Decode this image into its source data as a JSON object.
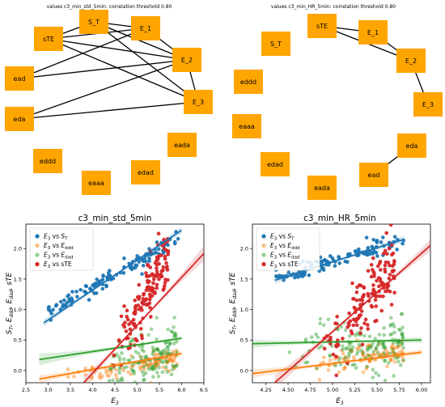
{
  "chart_data": [
    {
      "type": "network",
      "title": "values c3_min_std_5min: correlation threshold 0.80",
      "node_color": "#FFA500",
      "nodes": [
        "S_T",
        "E_1",
        "E_2",
        "E_3",
        "eada",
        "edad",
        "eaaa",
        "eddd",
        "eda",
        "ead",
        "sTE"
      ],
      "edges": [
        [
          "sTE",
          "S_T"
        ],
        [
          "sTE",
          "E_1"
        ],
        [
          "sTE",
          "E_2"
        ],
        [
          "sTE",
          "E_3"
        ],
        [
          "S_T",
          "E_1"
        ],
        [
          "S_T",
          "E_2"
        ],
        [
          "S_T",
          "E_3"
        ],
        [
          "E_1",
          "E_2"
        ],
        [
          "E_2",
          "E_3"
        ],
        [
          "ead",
          "E_1"
        ],
        [
          "ead",
          "E_2"
        ],
        [
          "eda",
          "E_2"
        ],
        [
          "eda",
          "E_3"
        ]
      ]
    },
    {
      "type": "network",
      "title": "values c3_min_HR_5min: correlation threshold 0.80",
      "node_color": "#FFA500",
      "nodes": [
        "sTE",
        "E_1",
        "E_2",
        "E_3",
        "eda",
        "ead",
        "eada",
        "edad",
        "eaaa",
        "eddd",
        "S_T"
      ],
      "edges": [
        [
          "sTE",
          "E_1"
        ],
        [
          "sTE",
          "E_2"
        ],
        [
          "E_1",
          "E_2"
        ],
        [
          "E_2",
          "E_3"
        ],
        [
          "ead",
          "eda"
        ]
      ]
    },
    {
      "type": "scatter",
      "title": "c3_min_std_5min",
      "xlabel": "E3",
      "ylabel": "ST, Eddd, Edad, sTE",
      "xlim": [
        2.5,
        6.5
      ],
      "ylim": [
        -0.2,
        2.4
      ],
      "xticks": [
        "2.5",
        "3.0",
        "3.5",
        "4.0",
        "4.5",
        "5.0",
        "5.5",
        "6.0",
        "6.5"
      ],
      "yticks": [
        "0.0",
        "0.5",
        "1.0",
        "1.5",
        "2.0"
      ],
      "legend_position": "top-left",
      "series": [
        {
          "name": "E3 vs ST",
          "legend_base": "E",
          "legend_sub": "3",
          "legend_mid": " vs ",
          "legend_tbase": "S",
          "legend_tsub": "T",
          "legend_tail": "",
          "color": "#1f77b4",
          "x_range": [
            3.0,
            5.95
          ],
          "y_start": 0.97,
          "slope": 0.405,
          "noise": 0.06,
          "count": 130,
          "fit_x": [
            2.9,
            6.0
          ],
          "fit_y": [
            0.78,
            2.3
          ]
        },
        {
          "name": "E3 vs Eddd",
          "legend_base": "E",
          "legend_sub": "3",
          "legend_mid": " vs ",
          "legend_tbase": "E",
          "legend_tsub": "ddd",
          "legend_tail": "",
          "color": "#ff7f0e",
          "x_range": [
            3.2,
            5.9
          ],
          "y_start": -0.12,
          "slope": 0.12,
          "noise": 0.08,
          "count": 110,
          "fit_x": [
            2.8,
            6.0
          ],
          "fit_y": [
            -0.14,
            0.28
          ]
        },
        {
          "name": "E3 vs Edad",
          "legend_base": "E",
          "legend_sub": "3",
          "legend_mid": " vs ",
          "legend_tbase": "E",
          "legend_tsub": "dad",
          "legend_tail": "",
          "color": "#2ca02c",
          "x_range": [
            4.3,
            5.9
          ],
          "y_start": 0.0,
          "slope": 0.22,
          "noise": 0.22,
          "count": 150,
          "fit_x": [
            2.8,
            6.0
          ],
          "fit_y": [
            0.18,
            0.53
          ]
        },
        {
          "name": "E3 vs sTE",
          "legend_base": "E",
          "legend_sub": "3",
          "legend_mid": " vs ",
          "legend_tbase": "sTE",
          "legend_tsub": "",
          "legend_tail": "",
          "color": "#d62728",
          "x_range": [
            4.4,
            5.7
          ],
          "y_start": 0.15,
          "slope": 1.35,
          "noise": 0.25,
          "count": 150,
          "fit_x": [
            3.8,
            6.5
          ],
          "fit_y": [
            -0.2,
            1.92
          ]
        }
      ]
    },
    {
      "type": "scatter",
      "title": "c3_min_HR_5min",
      "xlabel": "E3",
      "ylabel": "ST, Eddd, Edad, sTE",
      "xlim": [
        4.1,
        6.1
      ],
      "ylim": [
        -0.2,
        2.4
      ],
      "xticks": [
        "4.25",
        "4.50",
        "4.75",
        "5.00",
        "5.25",
        "5.50",
        "5.75",
        "6.00"
      ],
      "yticks": [
        "0.0",
        "0.5",
        "1.0",
        "1.5",
        "2.0"
      ],
      "legend_position": "top-left",
      "series": [
        {
          "name": "E3 vs ST",
          "legend_base": "E",
          "legend_sub": "3",
          "legend_mid": " vs ",
          "legend_tbase": "S",
          "legend_tsub": "T",
          "legend_tail": "",
          "color": "#1f77b4",
          "x_range": [
            4.35,
            5.8
          ],
          "y_start": 1.5,
          "slope": 0.45,
          "noise": 0.07,
          "count": 120,
          "fit_x": [
            4.35,
            5.8
          ],
          "fit_y": [
            1.48,
            2.15
          ]
        },
        {
          "name": "E3 vs Eddd",
          "legend_base": "E",
          "legend_sub": "3",
          "legend_mid": " vs ",
          "legend_tbase": "E",
          "legend_tsub": "ddd",
          "legend_tail": "",
          "color": "#ff7f0e",
          "x_range": [
            4.6,
            5.8
          ],
          "y_start": 0.02,
          "slope": 0.25,
          "noise": 0.1,
          "count": 110,
          "fit_x": [
            4.1,
            6.0
          ],
          "fit_y": [
            -0.05,
            0.3
          ]
        },
        {
          "name": "E3 vs Edad",
          "legend_base": "E",
          "legend_sub": "3",
          "legend_mid": " vs ",
          "legend_tbase": "E",
          "legend_tsub": "dad",
          "legend_tail": "",
          "color": "#2ca02c",
          "x_range": [
            4.5,
            5.8
          ],
          "y_start": 0.35,
          "slope": 0.05,
          "noise": 0.24,
          "count": 150,
          "fit_x": [
            4.1,
            6.0
          ],
          "fit_y": [
            0.44,
            0.5
          ]
        },
        {
          "name": "E3 vs sTE",
          "legend_base": "E",
          "legend_sub": "3",
          "legend_mid": " vs ",
          "legend_tbase": "sTE",
          "legend_tsub": "",
          "legend_tail": "",
          "color": "#d62728",
          "x_range": [
            4.9,
            5.7
          ],
          "y_start": 0.2,
          "slope": 2.0,
          "noise": 0.25,
          "count": 150,
          "fit_x": [
            4.35,
            6.1
          ],
          "fit_y": [
            -0.2,
            2.05
          ]
        }
      ]
    }
  ]
}
